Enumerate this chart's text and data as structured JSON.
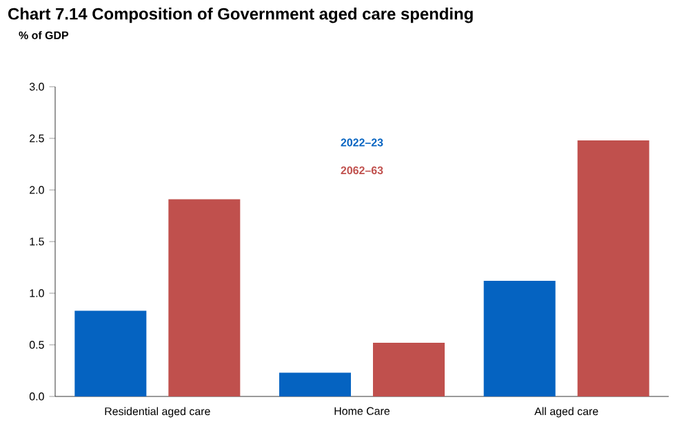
{
  "chart_data": {
    "type": "bar",
    "title": "Chart 7.14  Composition of Government aged care spending",
    "ylabel": "% of GDP",
    "categories": [
      "Residential aged care",
      "Home Care",
      "All aged care"
    ],
    "series": [
      {
        "name": "2022–23",
        "color": "#0563c1",
        "values": [
          0.83,
          0.23,
          1.12
        ]
      },
      {
        "name": "2062–63",
        "color": "#c0504d",
        "values": [
          1.91,
          0.52,
          2.48
        ]
      }
    ],
    "ylim": [
      0,
      3
    ],
    "yticks": [
      {
        "value": 0,
        "label": "0.0"
      },
      {
        "value": 0.5,
        "label": "0.5"
      },
      {
        "value": 1,
        "label": "1.0"
      },
      {
        "value": 1.5,
        "label": "1.5"
      },
      {
        "value": 2,
        "label": "2.0"
      },
      {
        "value": 2.5,
        "label": "2.5"
      },
      {
        "value": 3,
        "label": "3.0"
      }
    ],
    "legend": "top",
    "grid": false
  }
}
